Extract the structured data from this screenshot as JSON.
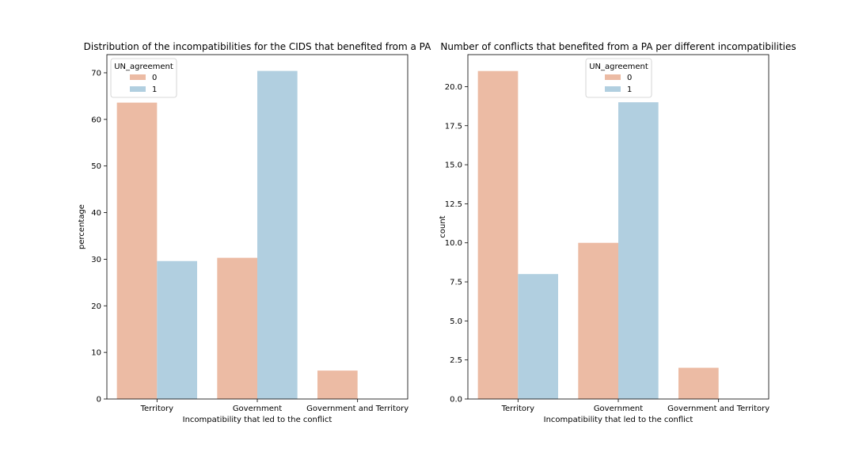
{
  "colors": {
    "series0": "#ecbba4",
    "series1": "#b1cfe0",
    "axis": "#000000"
  },
  "chart_data": [
    {
      "type": "bar",
      "title": "Distribution of the incompatibilities for the CIDS that benefited from a PA",
      "xlabel": "Incompatibility that led to the conflict",
      "ylabel": "percentage",
      "categories": [
        "Territory",
        "Government",
        "Government and Territory"
      ],
      "series": [
        {
          "name": "0",
          "values": [
            63.6,
            30.3,
            6.1
          ]
        },
        {
          "name": "1",
          "values": [
            29.6,
            70.4,
            0
          ]
        }
      ],
      "ylim": [
        0,
        73.9
      ],
      "yticks": [
        0,
        10,
        20,
        30,
        40,
        50,
        60,
        70
      ],
      "ytick_labels": [
        "0",
        "10",
        "20",
        "30",
        "40",
        "50",
        "60",
        "70"
      ],
      "legend": {
        "title": "UN_agreement",
        "placement": "upper-left"
      },
      "grid": false
    },
    {
      "type": "bar",
      "title": "Number of conflicts that benefited from a PA per different incompatibilities",
      "xlabel": "Incompatibility that led to the conflict",
      "ylabel": "count",
      "categories": [
        "Territory",
        "Government",
        "Government and Territory"
      ],
      "series": [
        {
          "name": "0",
          "values": [
            21,
            10,
            2
          ]
        },
        {
          "name": "1",
          "values": [
            8,
            19,
            0
          ]
        }
      ],
      "ylim": [
        0,
        22.05
      ],
      "yticks": [
        0,
        2.5,
        5,
        7.5,
        10,
        12.5,
        15,
        17.5,
        20
      ],
      "ytick_labels": [
        "0.0",
        "2.5",
        "5.0",
        "7.5",
        "10.0",
        "12.5",
        "15.0",
        "17.5",
        "20.0"
      ],
      "legend": {
        "title": "UN_agreement",
        "placement": "upper-center"
      },
      "grid": false
    }
  ]
}
